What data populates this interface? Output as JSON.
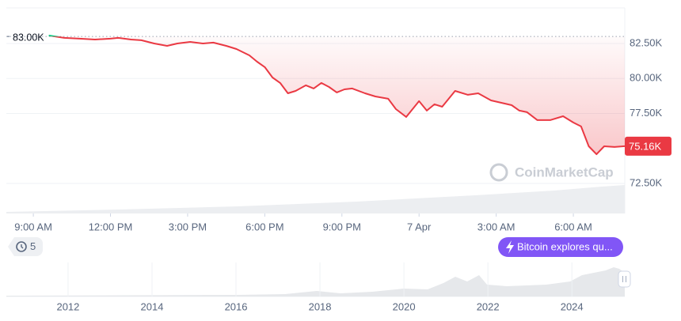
{
  "chart_data": {
    "type": "line",
    "x": [
      0.6,
      1.2,
      1.8,
      2.4,
      3.0,
      3.3,
      3.8,
      4.2,
      4.7,
      5.2,
      5.6,
      6.1,
      6.6,
      7.0,
      7.5,
      7.9,
      8.4,
      8.7,
      9.0,
      9.3,
      9.6,
      9.9,
      10.2,
      10.6,
      10.9,
      11.2,
      11.5,
      11.8,
      12.1,
      12.4,
      12.9,
      13.3,
      13.8,
      14.1,
      14.5,
      14.7,
      15.0,
      15.3,
      15.6,
      15.9,
      16.4,
      16.9,
      17.3,
      17.8,
      18.2,
      18.6,
      18.9,
      19.2,
      19.6,
      20.1,
      20.6,
      21.0,
      21.3,
      21.6,
      21.9,
      22.2,
      22.6,
      23.0
    ],
    "values": [
      83070,
      82900,
      82840,
      82780,
      82840,
      82900,
      82780,
      82730,
      82500,
      82330,
      82500,
      82610,
      82500,
      82560,
      82330,
      82100,
      81650,
      81200,
      80810,
      80070,
      79680,
      78940,
      79110,
      79510,
      79280,
      79680,
      79390,
      79000,
      79220,
      79280,
      78940,
      78710,
      78550,
      77810,
      77250,
      77700,
      78380,
      77700,
      78150,
      77980,
      79110,
      78830,
      78940,
      78430,
      78260,
      78090,
      77700,
      77590,
      77020,
      77020,
      77300,
      76850,
      76570,
      75150,
      74580,
      75150,
      75100,
      75160
    ],
    "color": "#ea3943",
    "color_above": "#16c784",
    "xlim": [
      -1.05,
      23.0
    ],
    "xticks": [
      {
        "value": 0,
        "label": "9:00 AM"
      },
      {
        "value": 3,
        "label": "12:00 PM"
      },
      {
        "value": 6,
        "label": "3:00 PM"
      },
      {
        "value": 9,
        "label": "6:00 PM"
      },
      {
        "value": 12,
        "label": "9:00 PM"
      },
      {
        "value": 15,
        "label": "7 Apr"
      },
      {
        "value": 18,
        "label": "3:00 AM"
      },
      {
        "value": 21,
        "label": "6:00 AM"
      }
    ],
    "ylim": [
      70350,
      85040
    ],
    "yticks": [
      {
        "value": 72500,
        "label": "72.50K"
      },
      {
        "value": 77500,
        "label": "77.50K"
      },
      {
        "value": 80000,
        "label": "80.00K"
      },
      {
        "value": 82500,
        "label": "82.50K"
      }
    ],
    "grid": true,
    "reference": {
      "value": 83000,
      "label": "83.00K"
    },
    "last_value": {
      "value": 75160,
      "label": "75.16K"
    },
    "watermark": "CoinMarketCap"
  },
  "navigator": {
    "xlim": [
      2010.53,
      2025.26
    ],
    "xticks": [
      2012,
      2014,
      2016,
      2018,
      2020,
      2022,
      2024
    ]
  },
  "controls": {
    "history_count": 5,
    "news_button": "Bitcoin explores qu..."
  }
}
